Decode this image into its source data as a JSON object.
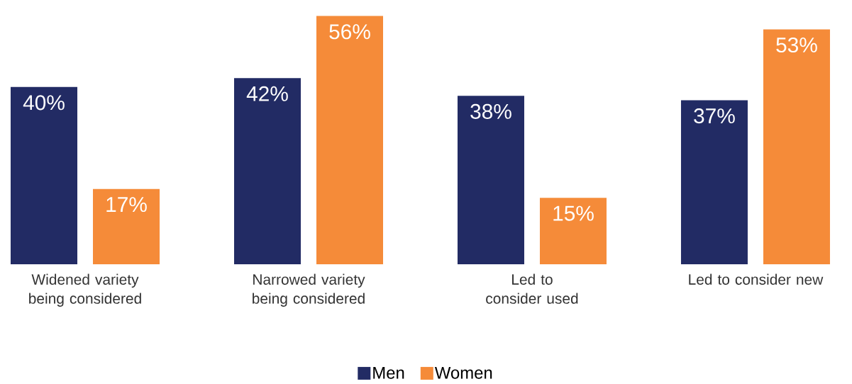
{
  "chart_data": {
    "type": "bar",
    "categories": [
      "Widened variety being considered",
      "Narrowed variety being considered",
      "Led to consider used",
      "Led to consider new"
    ],
    "series": [
      {
        "name": "Men",
        "color": "#222b64",
        "values": [
          40,
          42,
          38,
          37
        ],
        "value_labels": [
          "40%",
          "42%",
          "38%",
          "37%"
        ]
      },
      {
        "name": "Women",
        "color": "#f58b39",
        "values": [
          17,
          56,
          15,
          53
        ],
        "value_labels": [
          "17%",
          "56%",
          "15%",
          "53%"
        ]
      }
    ],
    "legend": "bottom"
  }
}
